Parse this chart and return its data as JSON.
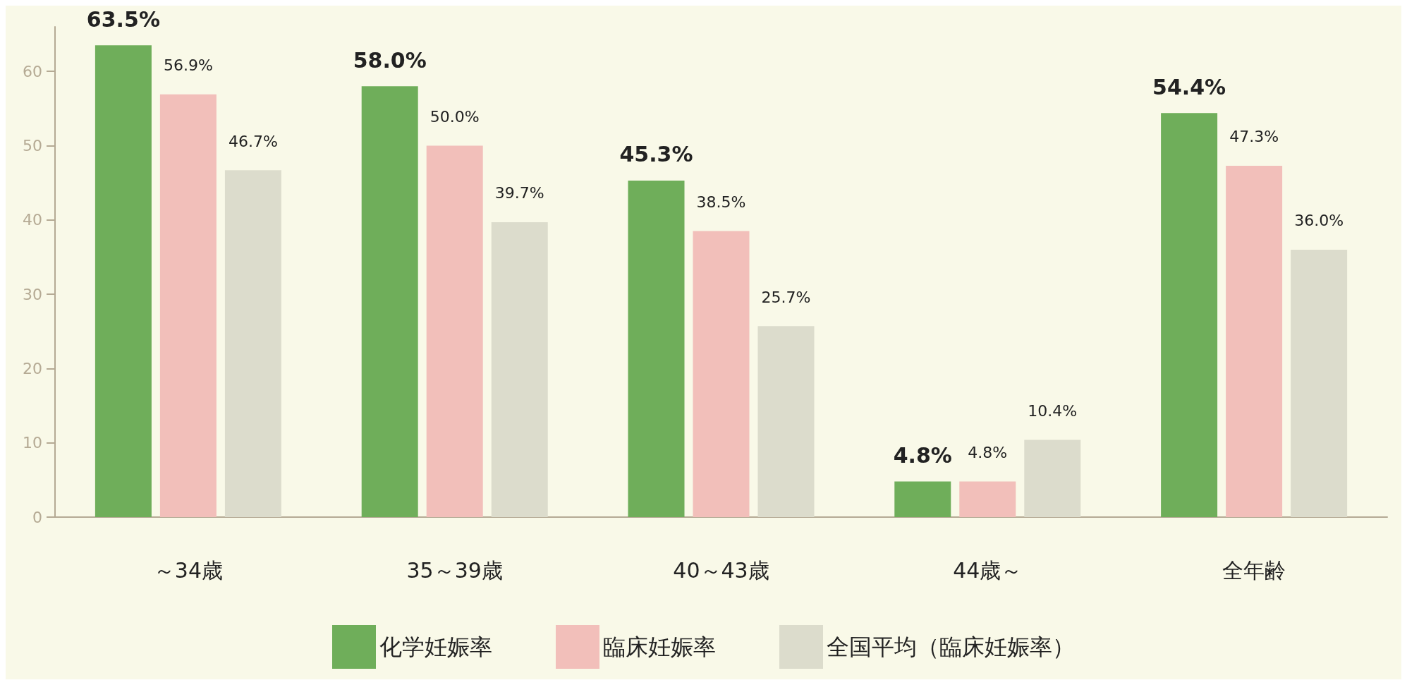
{
  "chart_data": {
    "type": "bar",
    "categories": [
      "～34歳",
      "35～39歳",
      "40～43歳",
      "44歳～",
      "全年齢"
    ],
    "series": [
      {
        "name": "化学妊娠率",
        "color": "#6fae5a",
        "values": [
          63.5,
          58.0,
          45.3,
          4.8,
          54.4
        ],
        "value_labels": [
          "63.5%",
          "58.0%",
          "45.3%",
          "4.8%",
          "54.4%"
        ]
      },
      {
        "name": "臨床妊娠率",
        "color": "#f2bfba",
        "values": [
          56.9,
          50.0,
          38.5,
          4.8,
          47.3
        ],
        "value_labels": [
          "56.9%",
          "50.0%",
          "38.5%",
          "4.8%",
          "47.3%"
        ]
      },
      {
        "name": "全国平均（臨床妊娠率）",
        "color": "#dcdccc",
        "values": [
          46.7,
          39.7,
          25.7,
          10.4,
          36.0
        ],
        "value_labels": [
          "46.7%",
          "39.7%",
          "25.7%",
          "10.4%",
          "36.0%"
        ]
      }
    ],
    "ylim": [
      0,
      66
    ],
    "yticks": [
      0,
      10,
      20,
      30,
      40,
      50,
      60
    ],
    "grid": false,
    "legend": "bottom"
  }
}
